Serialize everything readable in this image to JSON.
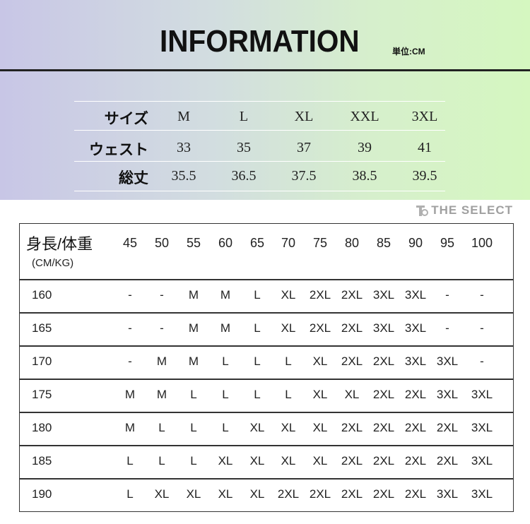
{
  "title": "INFORMATION",
  "unit": "単位:CM",
  "size_table": {
    "rows": [
      {
        "label": "サイズ",
        "values": [
          "M",
          "L",
          "XL",
          "XXL",
          "3XL"
        ]
      },
      {
        "label": "ウェスト",
        "values": [
          "33",
          "35",
          "37",
          "39",
          "41"
        ]
      },
      {
        "label": "総丈",
        "values": [
          "35.5",
          "36.5",
          "37.5",
          "38.5",
          "39.5"
        ]
      }
    ]
  },
  "fit_table": {
    "header_label": "身長/体重",
    "header_sub": "(CM/KG)",
    "weights": [
      "45",
      "50",
      "55",
      "60",
      "65",
      "70",
      "75",
      "80",
      "85",
      "90",
      "95",
      "100"
    ],
    "rows": [
      {
        "height": "160",
        "values": [
          "-",
          "-",
          "M",
          "M",
          "L",
          "XL",
          "2XL",
          "2XL",
          "3XL",
          "3XL",
          "-",
          "-"
        ]
      },
      {
        "height": "165",
        "values": [
          "-",
          "-",
          "M",
          "M",
          "L",
          "XL",
          "2XL",
          "2XL",
          "3XL",
          "3XL",
          "-",
          "-"
        ]
      },
      {
        "height": "170",
        "values": [
          "-",
          "M",
          "M",
          "L",
          "L",
          "L",
          "XL",
          "2XL",
          "2XL",
          "3XL",
          "3XL",
          "-"
        ]
      },
      {
        "height": "175",
        "values": [
          "M",
          "M",
          "L",
          "L",
          "L",
          "L",
          "XL",
          "XL",
          "2XL",
          "2XL",
          "3XL",
          "3XL"
        ]
      },
      {
        "height": "180",
        "values": [
          "M",
          "L",
          "L",
          "L",
          "XL",
          "XL",
          "XL",
          "2XL",
          "2XL",
          "2XL",
          "2XL",
          "3XL"
        ]
      },
      {
        "height": "185",
        "values": [
          "L",
          "L",
          "L",
          "XL",
          "XL",
          "XL",
          "XL",
          "2XL",
          "2XL",
          "2XL",
          "2XL",
          "3XL"
        ]
      },
      {
        "height": "190",
        "values": [
          "L",
          "XL",
          "XL",
          "XL",
          "XL",
          "2XL",
          "2XL",
          "2XL",
          "2XL",
          "2XL",
          "3XL",
          "3XL"
        ]
      }
    ]
  },
  "watermark": "THE SELECT"
}
